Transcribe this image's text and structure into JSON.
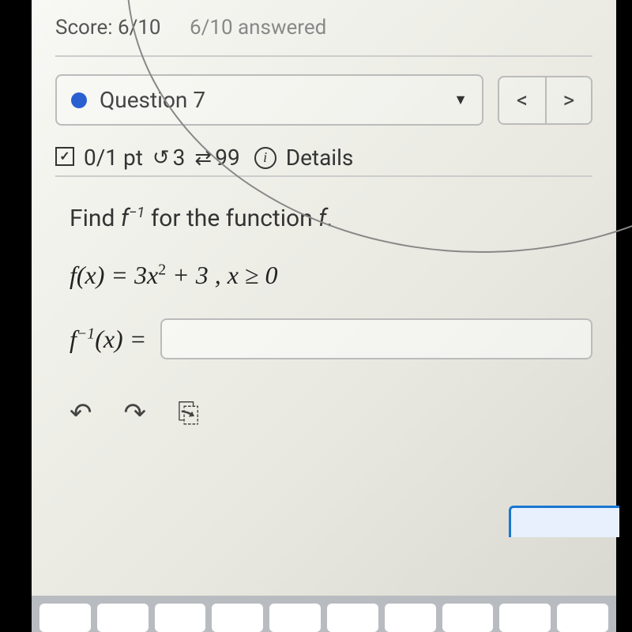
{
  "score": {
    "label": "Score:",
    "value": "6/10",
    "answered": "6/10 answered"
  },
  "question_select": {
    "label": "Question 7"
  },
  "nav": {
    "prev": "<",
    "next": ">"
  },
  "meta": {
    "points": "0/1 pt",
    "retries": "3",
    "attempts": "99",
    "details": "Details"
  },
  "problem": {
    "prompt_a": "Find ",
    "prompt_b": " for the function ",
    "period": ".",
    "f_sym": "f",
    "inv_sup": "−1",
    "eq_line": "f(x) = 3x",
    "sq_sup": "2",
    "eq_tail": " + 3 , x ≥ 0",
    "answer_lhs_a": "f",
    "answer_lhs_b": "(x) ="
  },
  "icons": {
    "caret_down": "▼",
    "undo": "↺",
    "sync": "⇄",
    "info": "i",
    "tb_undo": "↶",
    "tb_redo": "↷",
    "tb_paste": "⎘"
  },
  "colors": {
    "accent": "#2a5fd0",
    "border": "#bbbbbb",
    "focus": "#1976d2"
  }
}
